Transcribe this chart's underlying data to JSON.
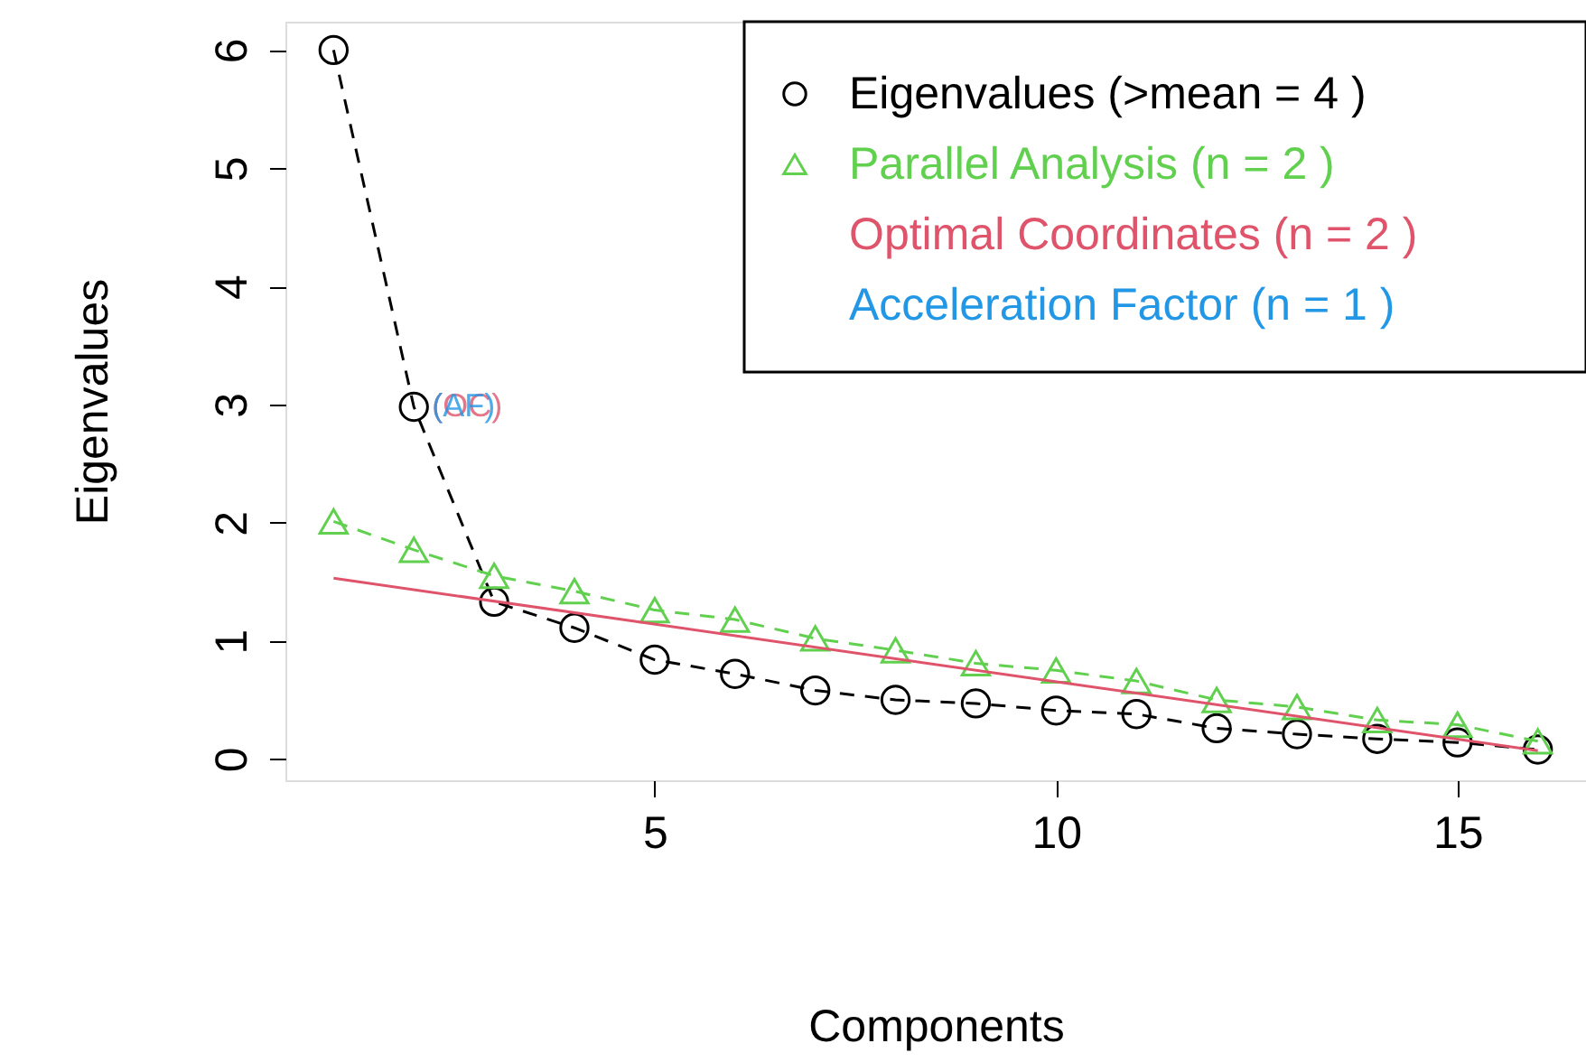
{
  "chart_data": {
    "type": "line",
    "xlabel": "Components",
    "ylabel": "Eigenvalues",
    "xlim": [
      0.4,
      16.6
    ],
    "ylim": [
      -0.18,
      6.24
    ],
    "xticks": [
      5,
      10,
      15
    ],
    "yticks": [
      0,
      1,
      2,
      3,
      4,
      5,
      6
    ],
    "grid": false,
    "legend": "top right",
    "series": [
      {
        "name": "Eigenvalues (>mean  =  4 )",
        "color": "#000000",
        "marker": "circle",
        "line_style": "dashed",
        "x": [
          1,
          2,
          3,
          4,
          5,
          6,
          7,
          8,
          9,
          10,
          11,
          12,
          13,
          14,
          15,
          16
        ],
        "values": [
          6.0,
          2.98,
          1.33,
          1.11,
          0.84,
          0.72,
          0.58,
          0.5,
          0.47,
          0.41,
          0.38,
          0.26,
          0.21,
          0.17,
          0.14,
          0.08
        ]
      },
      {
        "name": "Parallel Analysis (n =  2 )",
        "color": "#61d04f",
        "marker": "triangle",
        "line_style": "dashed",
        "x": [
          1,
          2,
          3,
          4,
          5,
          6,
          7,
          8,
          9,
          10,
          11,
          12,
          13,
          14,
          15,
          16
        ],
        "values": [
          2.01,
          1.77,
          1.55,
          1.42,
          1.26,
          1.18,
          1.02,
          0.92,
          0.81,
          0.75,
          0.66,
          0.5,
          0.44,
          0.33,
          0.29,
          0.15
        ]
      },
      {
        "name": "Optimal Coordinates (n =  2 )",
        "color": "#df536b",
        "marker": "none",
        "line_style": "solid",
        "x": [
          1,
          16
        ],
        "values": [
          1.53,
          0.07
        ]
      },
      {
        "name": "Acceleration Factor (n =  1 )",
        "color": "#2297e6"
      }
    ],
    "annotations": [
      {
        "text": "(OC)",
        "x": 2,
        "y": 2.98
      },
      {
        "text": "(AF)",
        "x": 2,
        "y": 2.98
      }
    ]
  }
}
